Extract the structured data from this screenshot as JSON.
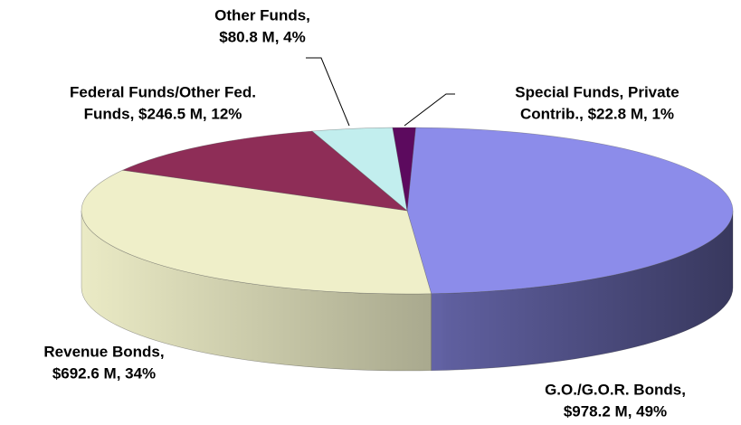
{
  "chart_data": {
    "type": "pie",
    "labels": [
      [
        "G.O./G.O.R. Bonds,",
        "$978.2 M, 49%"
      ],
      [
        "Revenue Bonds,",
        "$692.6 M, 34%"
      ],
      [
        "Federal Funds/Other Fed.",
        "Funds, $246.5 M, 12%"
      ],
      [
        "Other Funds,",
        "$80.8 M, 4%"
      ],
      [
        "Special Funds, Private",
        "Contrib., $22.8 M, 1%"
      ]
    ],
    "values": [
      978.2,
      692.6,
      246.5,
      80.8,
      22.8
    ],
    "colors": [
      "#8c8cea",
      "#efefc9",
      "#8e2d57",
      "#c2eeee",
      "#5c0a5e"
    ]
  }
}
